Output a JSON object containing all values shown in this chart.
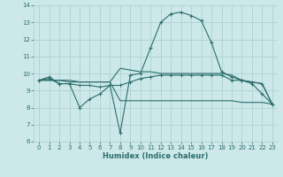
{
  "xlabel": "Humidex (Indice chaleur)",
  "x": [
    0,
    1,
    2,
    3,
    4,
    5,
    6,
    7,
    8,
    9,
    10,
    11,
    12,
    13,
    14,
    15,
    16,
    17,
    18,
    19,
    20,
    21,
    22,
    23
  ],
  "line1": [
    9.6,
    9.8,
    9.4,
    9.4,
    8.0,
    8.5,
    8.8,
    9.3,
    6.5,
    9.9,
    10.0,
    11.5,
    13.0,
    13.5,
    13.6,
    13.4,
    13.1,
    11.8,
    10.1,
    9.8,
    9.6,
    9.4,
    8.8,
    8.2
  ],
  "line2": [
    9.6,
    9.7,
    9.4,
    9.4,
    9.3,
    9.3,
    9.2,
    9.3,
    9.3,
    9.5,
    9.7,
    9.8,
    9.9,
    9.9,
    9.9,
    9.9,
    9.9,
    9.9,
    9.9,
    9.6,
    9.6,
    9.5,
    9.4,
    8.2
  ],
  "line3": [
    9.6,
    9.6,
    9.6,
    9.6,
    9.5,
    9.5,
    9.5,
    9.5,
    8.4,
    8.4,
    8.4,
    8.4,
    8.4,
    8.4,
    8.4,
    8.4,
    8.4,
    8.4,
    8.4,
    8.4,
    8.3,
    8.3,
    8.3,
    8.2
  ],
  "line4": [
    9.6,
    9.6,
    9.6,
    9.5,
    9.5,
    9.5,
    9.5,
    9.5,
    10.3,
    10.2,
    10.1,
    10.1,
    10.0,
    10.0,
    10.0,
    10.0,
    10.0,
    10.0,
    10.0,
    9.9,
    9.6,
    9.5,
    9.4,
    8.2
  ],
  "line_color": "#2d6e6e",
  "bg_color": "#cce8e8",
  "grid_color": "#aacece",
  "ylim": [
    6,
    14
  ],
  "xlim": [
    -0.5,
    23.5
  ],
  "yticks": [
    6,
    7,
    8,
    9,
    10,
    11,
    12,
    13,
    14
  ],
  "xticks": [
    0,
    1,
    2,
    3,
    4,
    5,
    6,
    7,
    8,
    9,
    10,
    11,
    12,
    13,
    14,
    15,
    16,
    17,
    18,
    19,
    20,
    21,
    22,
    23
  ]
}
